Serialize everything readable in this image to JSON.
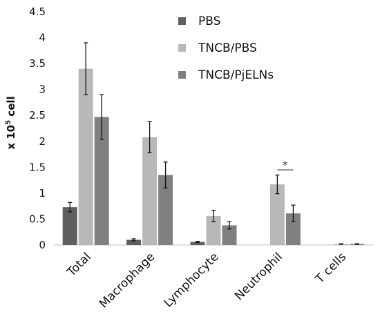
{
  "chart_data": {
    "type": "bar",
    "title": "",
    "xlabel": "",
    "ylabel": "x 10",
    "ylabel_sup": "5",
    "ylabel_unit": " cell",
    "ylim": [
      0,
      4.5
    ],
    "yticks": [
      "0",
      "0.5",
      "1",
      "1.5",
      "2",
      "2.5",
      "3",
      "3.5",
      "4",
      "4.5"
    ],
    "categories": [
      "Total",
      "Macrophage",
      "Lymphocyte",
      "Neutrophil",
      "T cells"
    ],
    "series": [
      {
        "name": "PBS",
        "color": "#5f5f5f",
        "values": [
          0.73,
          0.1,
          0.06,
          0.0,
          0.0
        ],
        "errors": [
          0.09,
          0.02,
          0.01,
          0.0,
          0.0
        ]
      },
      {
        "name": "TNCB/PBS",
        "color": "#b8b8b8",
        "values": [
          3.4,
          2.08,
          0.56,
          1.17,
          0.02
        ],
        "errors": [
          0.5,
          0.3,
          0.11,
          0.18,
          0.005
        ]
      },
      {
        "name": "TNCB/PjELNs",
        "color": "#808080",
        "values": [
          2.47,
          1.35,
          0.38,
          0.61,
          0.02
        ],
        "errors": [
          0.43,
          0.25,
          0.07,
          0.16,
          0.005
        ]
      }
    ],
    "annotations": [
      {
        "text": "*",
        "category": "Neutrophil",
        "between": [
          "TNCB/PBS",
          "TNCB/PjELNs"
        ],
        "y": 1.45
      }
    ],
    "grid": false,
    "legend": "top-right"
  }
}
